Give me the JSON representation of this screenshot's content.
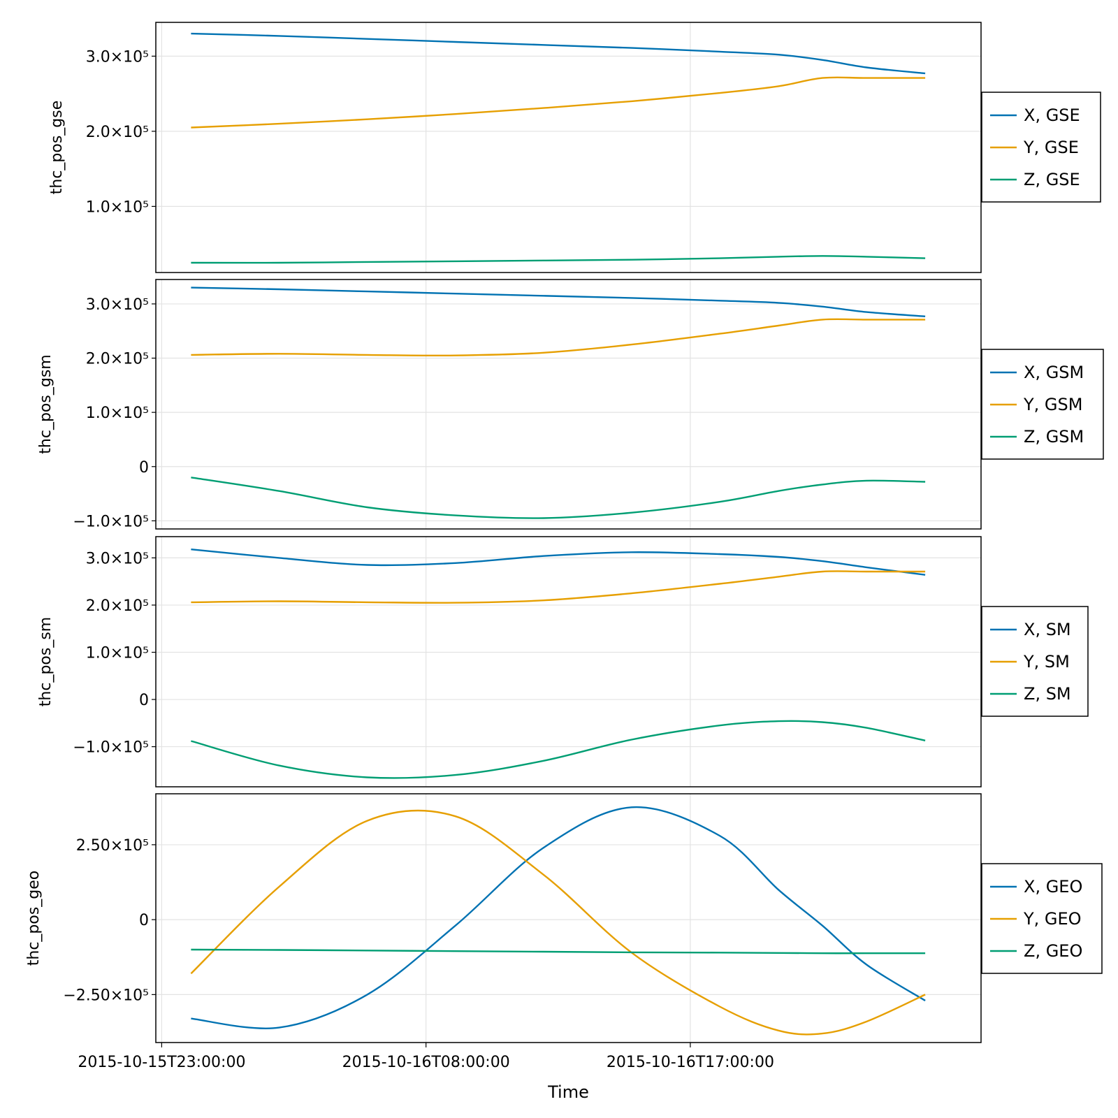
{
  "chart_data": [
    {
      "type": "line",
      "ylabel": "thc_pos_gse",
      "ylim": [
        12000,
        345000
      ],
      "yticks": [
        100000,
        200000,
        300000
      ],
      "ytick_labels": [
        "1.0×10⁵",
        "2.0×10⁵",
        "3.0×10⁵"
      ],
      "grid": true,
      "legend_position": "right",
      "x": [
        "2015-10-16T00:00:00",
        "2015-10-16T03:00:00",
        "2015-10-16T06:00:00",
        "2015-10-16T09:00:00",
        "2015-10-16T12:00:00",
        "2015-10-16T15:00:00",
        "2015-10-16T18:00:00",
        "2015-10-16T20:00:00",
        "2015-10-16T21:30:00",
        "2015-10-16T23:00:00",
        "2015-10-17T01:00:00"
      ],
      "series": [
        {
          "name": "X, GSE",
          "color": "#0072b2",
          "values": [
            330000,
            327000,
            323000,
            319000,
            315000,
            311000,
            306000,
            302000,
            295000,
            285000,
            277000
          ]
        },
        {
          "name": "Y, GSE",
          "color": "#e69f00",
          "values": [
            205000,
            210000,
            216000,
            223000,
            231000,
            240000,
            251000,
            260000,
            271000,
            271000,
            271000
          ]
        },
        {
          "name": "Z, GSE",
          "color": "#009e73",
          "values": [
            25000,
            25000,
            26000,
            27000,
            28000,
            29000,
            31000,
            33000,
            34000,
            33000,
            31000
          ]
        }
      ]
    },
    {
      "type": "line",
      "ylabel": "thc_pos_gsm",
      "ylim": [
        -115000,
        345000
      ],
      "yticks": [
        -100000,
        0,
        100000,
        200000,
        300000
      ],
      "ytick_labels": [
        "−1.0×10⁵",
        "0",
        "1.0×10⁵",
        "2.0×10⁵",
        "3.0×10⁵"
      ],
      "grid": true,
      "legend_position": "right",
      "x": [
        "2015-10-16T00:00:00",
        "2015-10-16T03:00:00",
        "2015-10-16T06:00:00",
        "2015-10-16T09:00:00",
        "2015-10-16T12:00:00",
        "2015-10-16T15:00:00",
        "2015-10-16T18:00:00",
        "2015-10-16T20:00:00",
        "2015-10-16T21:30:00",
        "2015-10-16T23:00:00",
        "2015-10-17T01:00:00"
      ],
      "series": [
        {
          "name": "X, GSM",
          "color": "#0072b2",
          "values": [
            330000,
            327000,
            323000,
            319000,
            315000,
            311000,
            306000,
            302000,
            295000,
            285000,
            277000
          ]
        },
        {
          "name": "Y, GSM",
          "color": "#e69f00",
          "values": [
            206000,
            208000,
            206000,
            205000,
            210000,
            225000,
            245000,
            260000,
            271000,
            271000,
            271000
          ]
        },
        {
          "name": "Z, GSM",
          "color": "#009e73",
          "values": [
            -20000,
            -45000,
            -75000,
            -90000,
            -95000,
            -85000,
            -65000,
            -45000,
            -33000,
            -26000,
            -28000
          ]
        }
      ]
    },
    {
      "type": "line",
      "ylabel": "thc_pos_sm",
      "ylim": [
        -185000,
        345000
      ],
      "yticks": [
        -100000,
        0,
        100000,
        200000,
        300000
      ],
      "ytick_labels": [
        "−1.0×10⁵",
        "0",
        "1.0×10⁵",
        "2.0×10⁵",
        "3.0×10⁵"
      ],
      "grid": true,
      "legend_position": "right",
      "x": [
        "2015-10-16T00:00:00",
        "2015-10-16T03:00:00",
        "2015-10-16T06:00:00",
        "2015-10-16T09:00:00",
        "2015-10-16T12:00:00",
        "2015-10-16T15:00:00",
        "2015-10-16T18:00:00",
        "2015-10-16T20:00:00",
        "2015-10-16T21:30:00",
        "2015-10-16T23:00:00",
        "2015-10-17T01:00:00"
      ],
      "series": [
        {
          "name": "X, SM",
          "color": "#0072b2",
          "values": [
            318000,
            300000,
            285000,
            289000,
            304000,
            312000,
            308000,
            302000,
            293000,
            280000,
            264000
          ]
        },
        {
          "name": "Y, SM",
          "color": "#e69f00",
          "values": [
            206000,
            208000,
            206000,
            205000,
            210000,
            225000,
            245000,
            260000,
            271000,
            271000,
            271000
          ]
        },
        {
          "name": "Z, SM",
          "color": "#009e73",
          "values": [
            -88000,
            -140000,
            -165000,
            -160000,
            -130000,
            -85000,
            -55000,
            -46000,
            -48000,
            -60000,
            -87000
          ]
        }
      ]
    },
    {
      "type": "line",
      "ylabel": "thc_pos_geo",
      "xlabel": "Time",
      "ylim": [
        -410000,
        420000
      ],
      "yticks": [
        -250000,
        0,
        250000
      ],
      "ytick_labels": [
        "−2.50×10⁵",
        "0",
        "2.50×10⁵"
      ],
      "xticks": [
        "2015-10-15T23:00:00",
        "2015-10-16T08:00:00",
        "2015-10-16T17:00:00"
      ],
      "grid": true,
      "legend_position": "right",
      "x": [
        "2015-10-16T00:00:00",
        "2015-10-16T03:00:00",
        "2015-10-16T06:00:00",
        "2015-10-16T09:00:00",
        "2015-10-16T12:00:00",
        "2015-10-16T15:00:00",
        "2015-10-16T18:00:00",
        "2015-10-16T20:00:00",
        "2015-10-16T21:30:00",
        "2015-10-16T23:00:00",
        "2015-10-17T01:00:00"
      ],
      "series": [
        {
          "name": "X, GEO",
          "color": "#0072b2",
          "values": [
            -330000,
            -360000,
            -250000,
            -20000,
            240000,
            375000,
            280000,
            100000,
            -20000,
            -150000,
            -270000
          ]
        },
        {
          "name": "Y, GEO",
          "color": "#e69f00",
          "values": [
            -180000,
            110000,
            330000,
            345000,
            150000,
            -110000,
            -290000,
            -370000,
            -380000,
            -340000,
            -250000
          ]
        },
        {
          "name": "Z, GEO",
          "color": "#009e73",
          "values": [
            -100000,
            -101000,
            -103000,
            -105000,
            -107000,
            -109000,
            -110000,
            -111000,
            -112000,
            -112000,
            -112000
          ]
        }
      ]
    }
  ]
}
